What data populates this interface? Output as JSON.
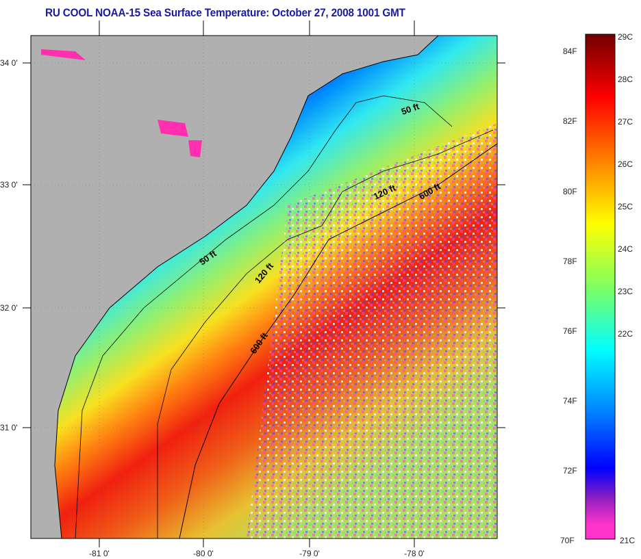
{
  "title": "RU COOL  NOAA-15  Sea Surface Temperature:  October 27, 2008 1001 GMT",
  "map": {
    "lat_labels": [
      "34 0'",
      "33 0'",
      "32 0'",
      "31 0'"
    ],
    "lon_labels": [
      "-81 0'",
      "-80 0'",
      "-79 0'",
      "-78 0'"
    ],
    "contour_labels": [
      "50 ft",
      "120 ft",
      "600 ft",
      "50 ft",
      "120 ft",
      "600 ft"
    ],
    "land_color": "#b0b0b0"
  },
  "colorbar": {
    "fahrenheit_labels": [
      "84F",
      "82F",
      "80F",
      "78F",
      "76F",
      "74F",
      "72F",
      "70F"
    ],
    "celsius_labels": [
      "29C",
      "28C",
      "27C",
      "26C",
      "25C",
      "24C",
      "23C",
      "22C",
      "21C"
    ],
    "range_c": [
      21,
      29
    ],
    "colors": [
      "#700000",
      "#ff0000",
      "#ff8000",
      "#ffff00",
      "#80ff60",
      "#00ffff",
      "#0080ff",
      "#0000ff",
      "#ff33cc"
    ]
  }
}
